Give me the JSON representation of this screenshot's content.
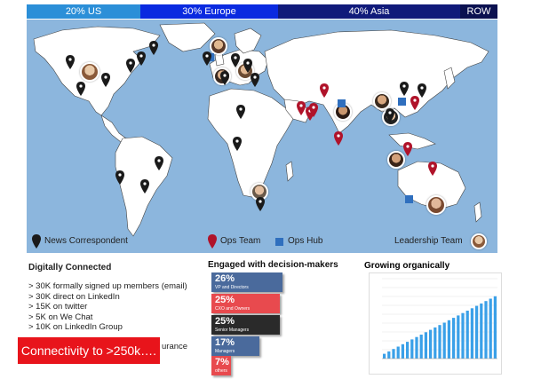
{
  "regions": [
    {
      "label": "20% US",
      "color": "#2b8fd8"
    },
    {
      "label": "30% Europe",
      "color": "#0a2ae0"
    },
    {
      "label": "40% Asia",
      "color": "#101a7a"
    },
    {
      "label": "ROW",
      "color": "#0b1150"
    }
  ],
  "legend": {
    "news": "News Correspondent",
    "ops_team": "Ops Team",
    "ops_hub": "Ops  Hub",
    "leadership": "Leadership Team"
  },
  "colors": {
    "news": "#1a1a1a",
    "ops": "#b0132a",
    "hub": "#2f6fbe",
    "ocean": "#8cb6dd",
    "land": "#ffffff"
  },
  "digital": {
    "title": "Digitally Connected",
    "items": [
      "> 30K formally signed up members (email)",
      "> 30K direct on LinkedIn",
      "> 15K on twitter",
      "> 5K on We Chat",
      "> 10K on LinkedIn Group"
    ],
    "cta": "Connectivity to >250k….",
    "fragment": "urance"
  },
  "engaged": {
    "title": "Engaged with decision-makers",
    "bars": [
      {
        "pct": "26%",
        "label": "VP and Directors",
        "color": "#4a6a9c",
        "share": 0.26
      },
      {
        "pct": "25%",
        "label": "CXO and Owners",
        "color": "#e84a4e",
        "share": 0.25
      },
      {
        "pct": "25%",
        "label": "Senior Managers",
        "color": "#2a2a2a",
        "share": 0.25
      },
      {
        "pct": "17%",
        "label": "Managers",
        "color": "#4a6a9c",
        "share": 0.17
      },
      {
        "pct": "7%",
        "label": "others",
        "color": "#e84a4e",
        "share": 0.07
      }
    ]
  },
  "growth": {
    "title": "Growing organically"
  },
  "chart_data": {
    "type": "bar",
    "title": "Growing organically",
    "values": [
      6,
      9,
      12,
      15,
      18,
      21,
      24,
      27,
      30,
      33,
      36,
      39,
      42,
      45,
      48,
      51,
      54,
      57,
      60,
      63,
      66,
      69,
      72,
      75,
      78
    ],
    "ylim": [
      0,
      100
    ],
    "bar_color": "#3aa0e8"
  }
}
